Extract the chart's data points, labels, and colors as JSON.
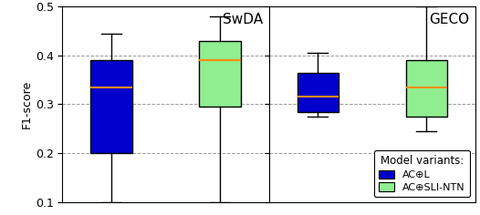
{
  "title_left": "SwDA",
  "title_right": "GECO",
  "ylabel": "F1-score",
  "ylim": [
    0.1,
    0.5
  ],
  "yticks": [
    0.1,
    0.2,
    0.3,
    0.4,
    0.5
  ],
  "legend_title": "Model variants:",
  "legend_labels": [
    "AC⊕L",
    "AC⊕SLI-NTN"
  ],
  "box_colors": [
    "#0000cc",
    "#90ee90"
  ],
  "median_color": "#ff8c00",
  "swda_blue": {
    "whislo": 0.1,
    "q1": 0.2,
    "med": 0.335,
    "q3": 0.39,
    "whishi": 0.445
  },
  "swda_green": {
    "whislo": 0.1,
    "q1": 0.295,
    "med": 0.39,
    "q3": 0.43,
    "whishi": 0.48
  },
  "geco_blue": {
    "whislo": 0.275,
    "q1": 0.285,
    "med": 0.315,
    "q3": 0.365,
    "whishi": 0.405
  },
  "geco_green": {
    "whislo": 0.245,
    "q1": 0.275,
    "med": 0.335,
    "q3": 0.39,
    "whishi": 0.5
  },
  "figsize": [
    5.26,
    2.36
  ],
  "dpi": 100
}
